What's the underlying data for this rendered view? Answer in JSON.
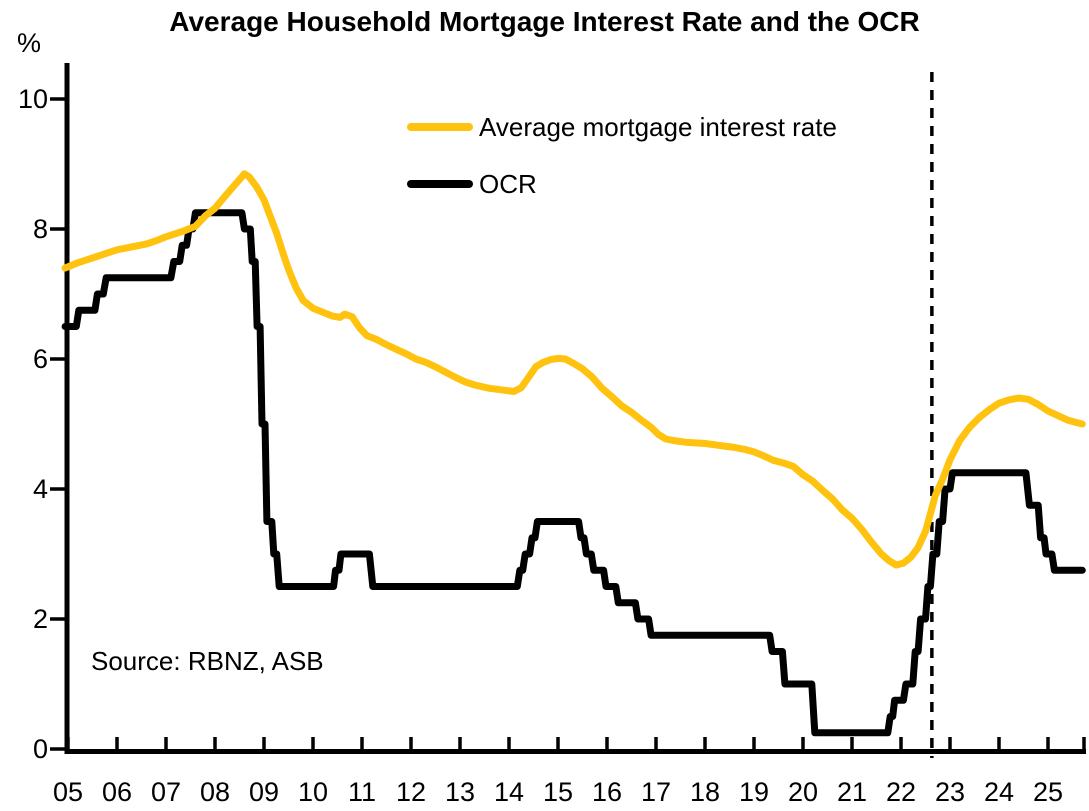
{
  "chart_data": {
    "type": "line",
    "title": "Average Household Mortgage Interest Rate and the OCR",
    "ylabel": "%",
    "xlabel": "",
    "ylim": [
      0,
      10
    ],
    "xlim": [
      2004.94,
      2025.7
    ],
    "grid": false,
    "legend_position": "top-center-inside",
    "y_ticks": [
      0,
      2,
      4,
      6,
      8,
      10
    ],
    "y_tick_labels": [
      "0",
      "2",
      "4",
      "6",
      "8",
      "10"
    ],
    "x_tick_years": [
      2005,
      2006,
      2007,
      2008,
      2009,
      2010,
      2011,
      2012,
      2013,
      2014,
      2015,
      2016,
      2017,
      2018,
      2019,
      2020,
      2021,
      2022,
      2023,
      2024,
      2025
    ],
    "x_tick_labels": [
      "05",
      "06",
      "07",
      "08",
      "09",
      "10",
      "11",
      "12",
      "13",
      "14",
      "15",
      "16",
      "17",
      "18",
      "19",
      "20",
      "21",
      "22",
      "23",
      "24",
      "25"
    ],
    "forecast_divider_year": 2022.63,
    "source_note": "Source: RBNZ, ASB",
    "series": [
      {
        "name": "Average mortgage interest rate",
        "color": "#FFC20E",
        "points": [
          [
            2004.94,
            7.4
          ],
          [
            2005.2,
            7.48
          ],
          [
            2005.4,
            7.53
          ],
          [
            2005.6,
            7.58
          ],
          [
            2005.8,
            7.63
          ],
          [
            2006.0,
            7.68
          ],
          [
            2006.2,
            7.71
          ],
          [
            2006.4,
            7.74
          ],
          [
            2006.6,
            7.77
          ],
          [
            2006.8,
            7.82
          ],
          [
            2007.0,
            7.88
          ],
          [
            2007.2,
            7.93
          ],
          [
            2007.4,
            7.98
          ],
          [
            2007.6,
            8.04
          ],
          [
            2007.8,
            8.2
          ],
          [
            2008.0,
            8.32
          ],
          [
            2008.2,
            8.5
          ],
          [
            2008.35,
            8.63
          ],
          [
            2008.5,
            8.76
          ],
          [
            2008.6,
            8.85
          ],
          [
            2008.7,
            8.8
          ],
          [
            2008.85,
            8.65
          ],
          [
            2009.0,
            8.45
          ],
          [
            2009.1,
            8.25
          ],
          [
            2009.25,
            7.95
          ],
          [
            2009.4,
            7.6
          ],
          [
            2009.5,
            7.38
          ],
          [
            2009.65,
            7.1
          ],
          [
            2009.8,
            6.9
          ],
          [
            2010.0,
            6.78
          ],
          [
            2010.2,
            6.72
          ],
          [
            2010.4,
            6.66
          ],
          [
            2010.55,
            6.64
          ],
          [
            2010.65,
            6.69
          ],
          [
            2010.8,
            6.65
          ],
          [
            2010.95,
            6.48
          ],
          [
            2011.1,
            6.36
          ],
          [
            2011.3,
            6.3
          ],
          [
            2011.5,
            6.22
          ],
          [
            2011.7,
            6.15
          ],
          [
            2011.9,
            6.08
          ],
          [
            2012.1,
            6.0
          ],
          [
            2012.3,
            5.95
          ],
          [
            2012.5,
            5.88
          ],
          [
            2012.7,
            5.8
          ],
          [
            2012.9,
            5.72
          ],
          [
            2013.1,
            5.65
          ],
          [
            2013.3,
            5.6
          ],
          [
            2013.6,
            5.55
          ],
          [
            2013.9,
            5.52
          ],
          [
            2014.1,
            5.5
          ],
          [
            2014.25,
            5.56
          ],
          [
            2014.4,
            5.72
          ],
          [
            2014.55,
            5.88
          ],
          [
            2014.7,
            5.95
          ],
          [
            2014.85,
            5.99
          ],
          [
            2015.0,
            6.01
          ],
          [
            2015.15,
            6.0
          ],
          [
            2015.3,
            5.94
          ],
          [
            2015.5,
            5.85
          ],
          [
            2015.7,
            5.72
          ],
          [
            2015.9,
            5.55
          ],
          [
            2016.1,
            5.42
          ],
          [
            2016.3,
            5.28
          ],
          [
            2016.5,
            5.18
          ],
          [
            2016.7,
            5.06
          ],
          [
            2016.9,
            4.95
          ],
          [
            2017.05,
            4.84
          ],
          [
            2017.2,
            4.77
          ],
          [
            2017.4,
            4.74
          ],
          [
            2017.6,
            4.72
          ],
          [
            2017.8,
            4.71
          ],
          [
            2018.0,
            4.7
          ],
          [
            2018.2,
            4.68
          ],
          [
            2018.4,
            4.66
          ],
          [
            2018.6,
            4.64
          ],
          [
            2018.8,
            4.61
          ],
          [
            2019.0,
            4.57
          ],
          [
            2019.2,
            4.51
          ],
          [
            2019.4,
            4.44
          ],
          [
            2019.6,
            4.4
          ],
          [
            2019.8,
            4.35
          ],
          [
            2020.0,
            4.22
          ],
          [
            2020.2,
            4.12
          ],
          [
            2020.4,
            3.98
          ],
          [
            2020.6,
            3.85
          ],
          [
            2020.8,
            3.68
          ],
          [
            2021.0,
            3.55
          ],
          [
            2021.2,
            3.38
          ],
          [
            2021.4,
            3.18
          ],
          [
            2021.6,
            3.0
          ],
          [
            2021.75,
            2.9
          ],
          [
            2021.9,
            2.83
          ],
          [
            2022.05,
            2.86
          ],
          [
            2022.2,
            2.95
          ],
          [
            2022.35,
            3.1
          ],
          [
            2022.5,
            3.35
          ],
          [
            2022.6,
            3.62
          ],
          [
            2022.7,
            3.9
          ],
          [
            2022.85,
            4.15
          ],
          [
            2023.0,
            4.45
          ],
          [
            2023.2,
            4.75
          ],
          [
            2023.4,
            4.95
          ],
          [
            2023.6,
            5.1
          ],
          [
            2023.8,
            5.22
          ],
          [
            2024.0,
            5.32
          ],
          [
            2024.2,
            5.37
          ],
          [
            2024.4,
            5.4
          ],
          [
            2024.6,
            5.38
          ],
          [
            2024.8,
            5.3
          ],
          [
            2025.0,
            5.2
          ],
          [
            2025.2,
            5.13
          ],
          [
            2025.4,
            5.06
          ],
          [
            2025.55,
            5.03
          ],
          [
            2025.7,
            5.0
          ]
        ]
      },
      {
        "name": "OCR",
        "color": "#000000",
        "points": [
          [
            2004.94,
            6.5
          ],
          [
            2005.17,
            6.5
          ],
          [
            2005.22,
            6.75
          ],
          [
            2005.55,
            6.75
          ],
          [
            2005.6,
            7.0
          ],
          [
            2005.72,
            7.0
          ],
          [
            2005.78,
            7.25
          ],
          [
            2007.1,
            7.25
          ],
          [
            2007.16,
            7.5
          ],
          [
            2007.28,
            7.5
          ],
          [
            2007.33,
            7.75
          ],
          [
            2007.42,
            7.75
          ],
          [
            2007.47,
            8.0
          ],
          [
            2007.55,
            8.0
          ],
          [
            2007.6,
            8.25
          ],
          [
            2008.55,
            8.25
          ],
          [
            2008.6,
            8.0
          ],
          [
            2008.72,
            8.0
          ],
          [
            2008.76,
            7.5
          ],
          [
            2008.82,
            7.5
          ],
          [
            2008.86,
            6.5
          ],
          [
            2008.92,
            6.5
          ],
          [
            2008.96,
            5.0
          ],
          [
            2009.02,
            5.0
          ],
          [
            2009.06,
            3.5
          ],
          [
            2009.16,
            3.5
          ],
          [
            2009.2,
            3.0
          ],
          [
            2009.26,
            3.0
          ],
          [
            2009.31,
            2.5
          ],
          [
            2010.42,
            2.5
          ],
          [
            2010.46,
            2.75
          ],
          [
            2010.53,
            2.75
          ],
          [
            2010.57,
            3.0
          ],
          [
            2011.15,
            3.0
          ],
          [
            2011.22,
            2.5
          ],
          [
            2014.17,
            2.5
          ],
          [
            2014.22,
            2.75
          ],
          [
            2014.28,
            2.75
          ],
          [
            2014.33,
            3.0
          ],
          [
            2014.42,
            3.0
          ],
          [
            2014.47,
            3.25
          ],
          [
            2014.53,
            3.25
          ],
          [
            2014.58,
            3.5
          ],
          [
            2015.42,
            3.5
          ],
          [
            2015.47,
            3.25
          ],
          [
            2015.53,
            3.25
          ],
          [
            2015.58,
            3.0
          ],
          [
            2015.68,
            3.0
          ],
          [
            2015.73,
            2.75
          ],
          [
            2015.93,
            2.75
          ],
          [
            2015.98,
            2.5
          ],
          [
            2016.18,
            2.5
          ],
          [
            2016.23,
            2.25
          ],
          [
            2016.58,
            2.25
          ],
          [
            2016.63,
            2.0
          ],
          [
            2016.85,
            2.0
          ],
          [
            2016.9,
            1.75
          ],
          [
            2019.32,
            1.75
          ],
          [
            2019.37,
            1.5
          ],
          [
            2019.58,
            1.5
          ],
          [
            2019.63,
            1.0
          ],
          [
            2020.18,
            1.0
          ],
          [
            2020.24,
            0.25
          ],
          [
            2021.73,
            0.25
          ],
          [
            2021.78,
            0.5
          ],
          [
            2021.83,
            0.5
          ],
          [
            2021.87,
            0.75
          ],
          [
            2022.05,
            0.75
          ],
          [
            2022.1,
            1.0
          ],
          [
            2022.24,
            1.0
          ],
          [
            2022.29,
            1.5
          ],
          [
            2022.35,
            1.5
          ],
          [
            2022.4,
            2.0
          ],
          [
            2022.5,
            2.0
          ],
          [
            2022.55,
            2.5
          ],
          [
            2022.6,
            2.5
          ],
          [
            2022.65,
            3.0
          ],
          [
            2022.73,
            3.0
          ],
          [
            2022.78,
            3.5
          ],
          [
            2022.85,
            3.5
          ],
          [
            2022.9,
            4.0
          ],
          [
            2023.0,
            4.0
          ],
          [
            2023.05,
            4.25
          ],
          [
            2024.55,
            4.25
          ],
          [
            2024.62,
            3.75
          ],
          [
            2024.8,
            3.75
          ],
          [
            2024.85,
            3.25
          ],
          [
            2024.92,
            3.25
          ],
          [
            2024.96,
            3.0
          ],
          [
            2025.08,
            3.0
          ],
          [
            2025.13,
            2.75
          ],
          [
            2025.7,
            2.75
          ]
        ]
      }
    ]
  }
}
